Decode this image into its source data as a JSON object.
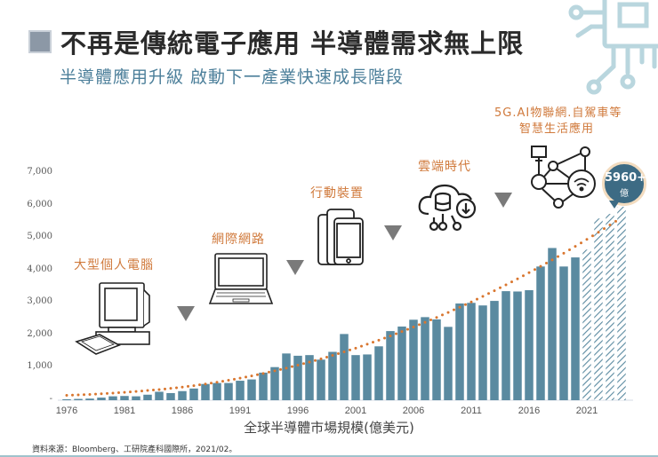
{
  "header": {
    "title": "不再是傳統電子應用  半導體需求無上限",
    "subtitle": "半導體應用升級 啟動下一產業快速成長階段"
  },
  "eras": [
    {
      "label": "大型個人電腦",
      "icon": "desktop-computer-icon"
    },
    {
      "label": "網際網路",
      "icon": "laptop-icon"
    },
    {
      "label": "行動裝置",
      "icon": "smartphone-icon"
    },
    {
      "label": "雲端時代",
      "icon": "cloud-database-icon"
    },
    {
      "label": "5G.AI物聯網.自駕車等",
      "label2": "智慧生活應用",
      "icon": "iot-network-icon"
    }
  ],
  "callout": {
    "value": "5960+",
    "unit": "億"
  },
  "footer": {
    "axis_title": "全球半導體市場規模(億美元)",
    "source": "資料來源：Bloomberg、工研院產科國際所，2021/02。"
  },
  "colors": {
    "bar": "#5a8aa0",
    "trend": "#d9762f",
    "era_text": "#d07a3c",
    "callout": "#3d6b84"
  },
  "chart_data": {
    "type": "bar",
    "title": "全球半導體市場規模(億美元)",
    "xlabel": "全球半導體市場規模(億美元)",
    "ylabel": "",
    "ylim": [
      0,
      7000
    ],
    "yticks": [
      "-",
      "1,000",
      "2,000",
      "3,000",
      "4,000",
      "5,000",
      "6,000",
      "7,000"
    ],
    "xticks": [
      "1976",
      "1981",
      "1986",
      "1991",
      "1996",
      "2001",
      "2006",
      "2011",
      "2016",
      "2021"
    ],
    "grid": false,
    "legend": "none",
    "categories": [
      "1976",
      "1977",
      "1978",
      "1979",
      "1980",
      "1981",
      "1982",
      "1983",
      "1984",
      "1985",
      "1986",
      "1987",
      "1988",
      "1989",
      "1990",
      "1991",
      "1992",
      "1993",
      "1994",
      "1995",
      "1996",
      "1997",
      "1998",
      "1999",
      "2000",
      "2001",
      "2002",
      "2003",
      "2004",
      "2005",
      "2006",
      "2007",
      "2008",
      "2009",
      "2010",
      "2011",
      "2012",
      "2013",
      "2014",
      "2015",
      "2016",
      "2017",
      "2018",
      "2019",
      "2020",
      "2021",
      "2022",
      "2023",
      "2024"
    ],
    "series": [
      {
        "name": "市場規模",
        "values": [
          30,
          40,
          50,
          80,
          120,
          130,
          120,
          170,
          260,
          220,
          280,
          360,
          500,
          530,
          530,
          600,
          640,
          850,
          1020,
          1440,
          1370,
          1390,
          1250,
          1490,
          2040,
          1390,
          1410,
          1660,
          2130,
          2270,
          2480,
          2560,
          2490,
          2260,
          2980,
          3000,
          2920,
          3060,
          3360,
          3350,
          3390,
          4120,
          4690,
          4120,
          4400,
          4640,
          5600,
          5740,
          5960
        ]
      },
      {
        "name": "trend",
        "style": "dotted",
        "values": [
          40,
          55,
          70,
          90,
          110,
          135,
          160,
          190,
          220,
          255,
          295,
          340,
          390,
          445,
          505,
          570,
          640,
          715,
          795,
          880,
          970,
          1065,
          1165,
          1270,
          1380,
          1495,
          1615,
          1740,
          1870,
          2005,
          2145,
          2290,
          2440,
          2595,
          2755,
          2920,
          3090,
          3265,
          3445,
          3630,
          3820,
          4015,
          4215,
          4420,
          4630,
          4845,
          5065,
          5290,
          5520
        ]
      }
    ],
    "forecast_from": "2021",
    "annotations": [
      "大型個人電腦",
      "網際網路",
      "行動裝置",
      "雲端時代",
      "5G.AI物聯網.自駕車等 智慧生活應用",
      "5960+ 億"
    ]
  }
}
